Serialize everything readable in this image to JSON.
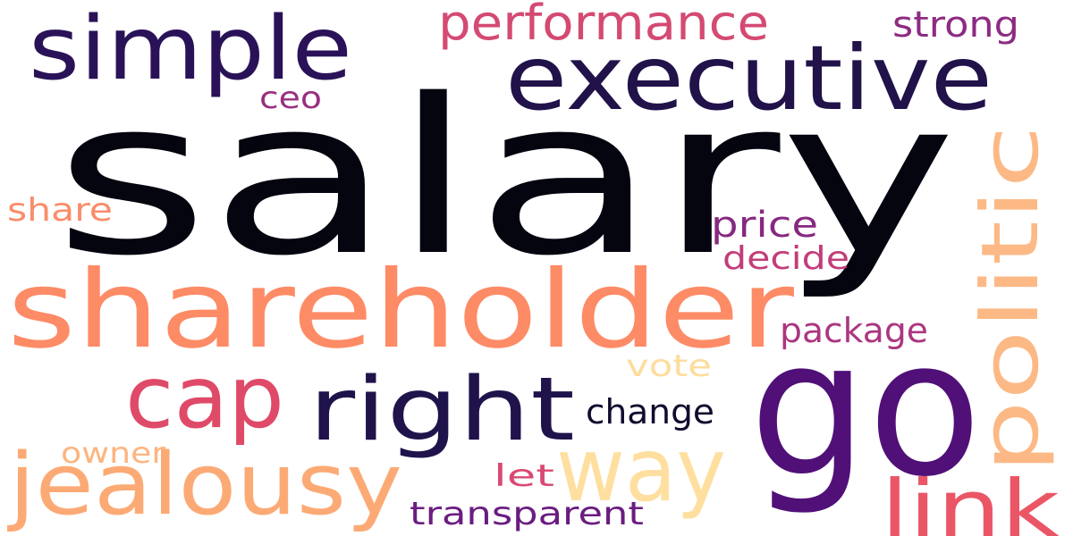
{
  "words": [
    {
      "text": "salary",
      "color": "#050510"
    },
    {
      "text": "go",
      "color": "#501078"
    },
    {
      "text": "shareholder",
      "color": "#FD8B66"
    },
    {
      "text": "executive",
      "color": "#21124A"
    },
    {
      "text": "simple",
      "color": "#2A1258"
    },
    {
      "text": "right",
      "color": "#20134B"
    },
    {
      "text": "cap",
      "color": "#DF4A68"
    },
    {
      "text": "politic",
      "color": "#FCB985"
    },
    {
      "text": "jealousy",
      "color": "#FCAA75"
    },
    {
      "text": "way",
      "color": "#FEDF9F"
    },
    {
      "text": "link",
      "color": "#EA5666"
    },
    {
      "text": "performance",
      "color": "#D44A72"
    },
    {
      "text": "strong",
      "color": "#8D2B82"
    },
    {
      "text": "ceo",
      "color": "#9A2F7E"
    },
    {
      "text": "share",
      "color": "#F98C6A"
    },
    {
      "text": "price",
      "color": "#86297F"
    },
    {
      "text": "decide",
      "color": "#C23D79"
    },
    {
      "text": "package",
      "color": "#AB3780"
    },
    {
      "text": "vote",
      "color": "#FEDC9B"
    },
    {
      "text": "change",
      "color": "#120B2E"
    },
    {
      "text": "owner",
      "color": "#FDB47F"
    },
    {
      "text": "let",
      "color": "#D94A73"
    },
    {
      "text": "transparent",
      "color": "#6A1C80"
    }
  ]
}
